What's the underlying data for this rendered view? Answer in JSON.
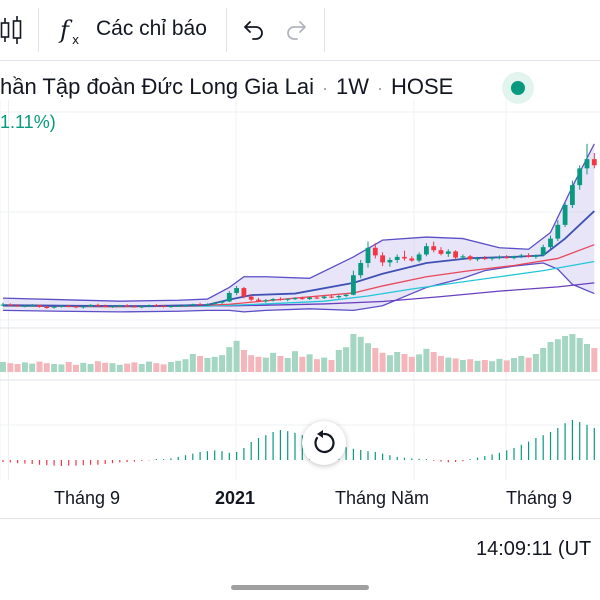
{
  "toolbar": {
    "indicators_label": "Các chỉ báo",
    "icons": [
      "candles-icon",
      "fx-icon",
      "undo-icon",
      "redo-icon"
    ]
  },
  "header": {
    "title": "hần Tập đoàn Đức Long Gia Lai",
    "interval": "1W",
    "exchange": "HOSE",
    "change": "1.11%)",
    "status_color": "#089981"
  },
  "time_display": "14:09:11 (UT",
  "colors": {
    "up": "#089981",
    "down": "#f23645",
    "bb_band": "#5b4fc7",
    "bb_fill": "#c9c6ee",
    "ma_fast": "#e8485a",
    "ma_mid": "#26c6da",
    "ma_slow": "#6a3fc0",
    "grid": "#eef0f3",
    "vol_up": "#a5d6c3",
    "vol_down": "#f4b6bb"
  },
  "chart_data": {
    "type": "candlestick",
    "x_tick_labels": [
      "Tháng 9",
      "2021",
      "Tháng Năm",
      "Tháng 9"
    ],
    "x_tick_bold": [
      false,
      true,
      false,
      false
    ],
    "price_scale": "unlabeled",
    "candles": [
      [
        0.0,
        2.32,
        2.4,
        2.28,
        2.34
      ],
      [
        1.0,
        2.34,
        2.38,
        2.3,
        2.31
      ],
      [
        2.0,
        2.31,
        2.35,
        2.26,
        2.28
      ],
      [
        3.0,
        2.28,
        2.33,
        2.25,
        2.3
      ],
      [
        4.0,
        2.3,
        2.36,
        2.27,
        2.32
      ],
      [
        5.0,
        2.32,
        2.34,
        2.24,
        2.26
      ],
      [
        6.0,
        2.26,
        2.3,
        2.2,
        2.24
      ],
      [
        7.0,
        2.24,
        2.29,
        2.21,
        2.27
      ],
      [
        8.0,
        2.27,
        2.32,
        2.24,
        2.3
      ],
      [
        9.0,
        2.3,
        2.33,
        2.25,
        2.28
      ],
      [
        10.0,
        2.28,
        2.31,
        2.22,
        2.25
      ],
      [
        11.0,
        2.25,
        2.3,
        2.21,
        2.28
      ],
      [
        12.0,
        2.28,
        2.35,
        2.26,
        2.33
      ],
      [
        13.0,
        2.33,
        2.37,
        2.28,
        2.3
      ],
      [
        14.0,
        2.3,
        2.34,
        2.25,
        2.27
      ],
      [
        15.0,
        2.27,
        2.31,
        2.23,
        2.29
      ],
      [
        16.0,
        2.29,
        2.33,
        2.26,
        2.31
      ],
      [
        17.0,
        2.31,
        2.35,
        2.27,
        2.28
      ],
      [
        18.0,
        2.28,
        2.32,
        2.24,
        2.26
      ],
      [
        19.0,
        2.26,
        2.3,
        2.22,
        2.28
      ],
      [
        20.0,
        2.28,
        2.34,
        2.25,
        2.32
      ],
      [
        21.0,
        2.32,
        2.36,
        2.28,
        2.3
      ],
      [
        22.0,
        2.3,
        2.33,
        2.24,
        2.27
      ],
      [
        23.0,
        2.27,
        2.31,
        2.23,
        2.29
      ],
      [
        24.0,
        2.29,
        2.33,
        2.26,
        2.3
      ],
      [
        25.0,
        2.3,
        2.34,
        2.27,
        2.32
      ],
      [
        26.0,
        2.32,
        2.37,
        2.29,
        2.35
      ],
      [
        27.0,
        2.35,
        2.4,
        2.31,
        2.33
      ],
      [
        28.0,
        2.33,
        2.38,
        2.3,
        2.36
      ],
      [
        29.0,
        2.36,
        2.43,
        2.33,
        2.4
      ],
      [
        30.0,
        2.4,
        2.47,
        2.36,
        2.44
      ],
      [
        31.0,
        2.44,
        2.78,
        2.42,
        2.72
      ],
      [
        32.0,
        2.72,
        2.95,
        2.65,
        2.88
      ],
      [
        33.0,
        2.88,
        2.92,
        2.55,
        2.6
      ],
      [
        34.0,
        2.6,
        2.68,
        2.45,
        2.5
      ],
      [
        35.0,
        2.5,
        2.56,
        2.42,
        2.46
      ],
      [
        36.0,
        2.46,
        2.52,
        2.4,
        2.48
      ],
      [
        37.0,
        2.48,
        2.55,
        2.44,
        2.52
      ],
      [
        38.0,
        2.52,
        2.58,
        2.47,
        2.5
      ],
      [
        39.0,
        2.5,
        2.54,
        2.45,
        2.53
      ],
      [
        40.0,
        2.53,
        2.58,
        2.49,
        2.55
      ],
      [
        41.0,
        2.55,
        2.6,
        2.5,
        2.52
      ],
      [
        42.0,
        2.52,
        2.59,
        2.49,
        2.57
      ],
      [
        43.0,
        2.57,
        2.63,
        2.52,
        2.55
      ],
      [
        44.0,
        2.55,
        2.62,
        2.52,
        2.6
      ],
      [
        45.0,
        2.6,
        2.66,
        2.55,
        2.58
      ],
      [
        46.0,
        2.58,
        2.65,
        2.54,
        2.62
      ],
      [
        47.0,
        2.62,
        2.7,
        2.58,
        2.66
      ],
      [
        48.0,
        2.66,
        3.45,
        2.64,
        3.3
      ],
      [
        49.0,
        3.3,
        3.8,
        3.2,
        3.7
      ],
      [
        50.0,
        3.7,
        4.4,
        3.55,
        4.2
      ],
      [
        51.0,
        4.2,
        4.35,
        3.85,
        3.95
      ],
      [
        52.0,
        3.95,
        4.05,
        3.6,
        3.72
      ],
      [
        53.0,
        3.72,
        3.88,
        3.58,
        3.8
      ],
      [
        54.0,
        3.8,
        3.98,
        3.7,
        3.9
      ],
      [
        55.0,
        3.9,
        4.1,
        3.78,
        3.85
      ],
      [
        56.0,
        3.85,
        3.92,
        3.74,
        3.78
      ],
      [
        57.0,
        3.78,
        4.05,
        3.72,
        3.98
      ],
      [
        58.0,
        3.98,
        4.35,
        3.92,
        4.25
      ],
      [
        59.0,
        4.25,
        4.4,
        4.05,
        4.12
      ],
      [
        60.0,
        4.12,
        4.22,
        3.95,
        4.0
      ],
      [
        61.0,
        4.0,
        4.15,
        3.9,
        4.08
      ],
      [
        62.0,
        4.08,
        4.12,
        3.82,
        3.88
      ],
      [
        63.0,
        3.88,
        3.98,
        3.8,
        3.92
      ],
      [
        64.0,
        3.92,
        3.96,
        3.78,
        3.82
      ],
      [
        65.0,
        3.82,
        3.9,
        3.76,
        3.86
      ],
      [
        66.0,
        3.86,
        3.93,
        3.8,
        3.84
      ],
      [
        67.0,
        3.84,
        3.9,
        3.78,
        3.88
      ],
      [
        68.0,
        3.88,
        3.95,
        3.82,
        3.9
      ],
      [
        69.0,
        3.9,
        3.96,
        3.84,
        3.86
      ],
      [
        70.0,
        3.86,
        3.94,
        3.82,
        3.92
      ],
      [
        71.0,
        3.92,
        4.0,
        3.86,
        3.95
      ],
      [
        72.0,
        3.95,
        4.02,
        3.88,
        3.9
      ],
      [
        73.0,
        3.9,
        3.98,
        3.84,
        3.96
      ],
      [
        74.0,
        3.96,
        4.3,
        3.92,
        4.22
      ],
      [
        75.0,
        4.22,
        4.6,
        4.15,
        4.5
      ],
      [
        76.0,
        4.5,
        5.1,
        4.42,
        4.95
      ],
      [
        77.0,
        4.95,
        5.7,
        4.88,
        5.6
      ],
      [
        78.0,
        5.6,
        6.4,
        5.5,
        6.25
      ],
      [
        79.0,
        6.25,
        6.9,
        6.1,
        6.8
      ],
      [
        80.0,
        6.8,
        7.6,
        6.6,
        7.1
      ],
      [
        81.0,
        7.1,
        7.3,
        6.8,
        6.9
      ]
    ],
    "bollinger": {
      "upper": [
        [
          0,
          2.55
        ],
        [
          8,
          2.5
        ],
        [
          16,
          2.45
        ],
        [
          24,
          2.48
        ],
        [
          28,
          2.52
        ],
        [
          31,
          2.9
        ],
        [
          33,
          3.25
        ],
        [
          36,
          3.25
        ],
        [
          42,
          3.2
        ],
        [
          48,
          3.9
        ],
        [
          52,
          4.45
        ],
        [
          58,
          4.55
        ],
        [
          63,
          4.5
        ],
        [
          68,
          4.2
        ],
        [
          72,
          4.15
        ],
        [
          75,
          4.7
        ],
        [
          78,
          6.2
        ],
        [
          81,
          7.6
        ]
      ],
      "lower": [
        [
          0,
          2.15
        ],
        [
          8,
          2.12
        ],
        [
          16,
          2.1
        ],
        [
          24,
          2.12
        ],
        [
          28,
          2.15
        ],
        [
          31,
          2.15
        ],
        [
          33,
          2.1
        ],
        [
          36,
          2.15
        ],
        [
          42,
          2.2
        ],
        [
          48,
          2.15
        ],
        [
          52,
          2.3
        ],
        [
          58,
          2.9
        ],
        [
          63,
          3.2
        ],
        [
          66,
          3.45
        ],
        [
          70,
          3.6
        ],
        [
          74,
          3.7
        ],
        [
          76,
          3.5
        ],
        [
          78,
          3.0
        ],
        [
          81,
          2.7
        ]
      ],
      "basis": [
        [
          0,
          2.32
        ],
        [
          10,
          2.3
        ],
        [
          20,
          2.29
        ],
        [
          28,
          2.33
        ],
        [
          31,
          2.5
        ],
        [
          34,
          2.65
        ],
        [
          40,
          2.7
        ],
        [
          48,
          3.05
        ],
        [
          52,
          3.35
        ],
        [
          58,
          3.7
        ],
        [
          64,
          3.86
        ],
        [
          70,
          3.9
        ],
        [
          74,
          3.95
        ],
        [
          77,
          4.5
        ],
        [
          81,
          5.4
        ]
      ]
    },
    "moving_averages": [
      {
        "points": [
          [
            0,
            2.3
          ],
          [
            15,
            2.27
          ],
          [
            25,
            2.29
          ],
          [
            31,
            2.35
          ],
          [
            40,
            2.55
          ],
          [
            48,
            2.72
          ],
          [
            52,
            2.95
          ],
          [
            58,
            3.25
          ],
          [
            64,
            3.45
          ],
          [
            70,
            3.62
          ],
          [
            76,
            3.85
          ],
          [
            81,
            4.3
          ]
        ]
      },
      {
        "points": [
          [
            0,
            2.29
          ],
          [
            15,
            2.27
          ],
          [
            28,
            2.29
          ],
          [
            36,
            2.36
          ],
          [
            44,
            2.45
          ],
          [
            50,
            2.62
          ],
          [
            56,
            2.85
          ],
          [
            62,
            3.05
          ],
          [
            68,
            3.25
          ],
          [
            74,
            3.45
          ],
          [
            81,
            3.75
          ]
        ]
      },
      {
        "points": [
          [
            0,
            2.32
          ],
          [
            20,
            2.28
          ],
          [
            32,
            2.3
          ],
          [
            44,
            2.36
          ],
          [
            52,
            2.44
          ],
          [
            60,
            2.6
          ],
          [
            68,
            2.78
          ],
          [
            76,
            2.92
          ],
          [
            81,
            3.05
          ]
        ]
      }
    ],
    "volume": [
      [
        0.0,
        0.25
      ],
      [
        1.0,
        0.22
      ],
      [
        2.0,
        0.2
      ],
      [
        3.0,
        0.24
      ],
      [
        4.0,
        0.21
      ],
      [
        5.0,
        0.26
      ],
      [
        6.0,
        0.22
      ],
      [
        7.0,
        0.2
      ],
      [
        8.0,
        0.19
      ],
      [
        9.0,
        0.25
      ],
      [
        10.0,
        0.18
      ],
      [
        11.0,
        0.23
      ],
      [
        12.0,
        0.2
      ],
      [
        13.0,
        0.27
      ],
      [
        14.0,
        0.23
      ],
      [
        15.0,
        0.22
      ],
      [
        16.0,
        0.18
      ],
      [
        17.0,
        0.21
      ],
      [
        18.0,
        0.24
      ],
      [
        19.0,
        0.2
      ],
      [
        20.0,
        0.26
      ],
      [
        21.0,
        0.22
      ],
      [
        22.0,
        0.19
      ],
      [
        23.0,
        0.25
      ],
      [
        24.0,
        0.28
      ],
      [
        25.0,
        0.32
      ],
      [
        26.0,
        0.45
      ],
      [
        27.0,
        0.4
      ],
      [
        28.0,
        0.35
      ],
      [
        29.0,
        0.38
      ],
      [
        30.0,
        0.42
      ],
      [
        31.0,
        0.62
      ],
      [
        32.0,
        0.78
      ],
      [
        33.0,
        0.55
      ],
      [
        34.0,
        0.42
      ],
      [
        35.0,
        0.38
      ],
      [
        36.0,
        0.36
      ],
      [
        37.0,
        0.48
      ],
      [
        38.0,
        0.4
      ],
      [
        39.0,
        0.35
      ],
      [
        40.0,
        0.52
      ],
      [
        41.0,
        0.38
      ],
      [
        42.0,
        0.44
      ],
      [
        43.0,
        0.32
      ],
      [
        44.0,
        0.36
      ],
      [
        45.0,
        0.3
      ],
      [
        46.0,
        0.55
      ],
      [
        47.0,
        0.62
      ],
      [
        48.0,
        0.95
      ],
      [
        49.0,
        0.88
      ],
      [
        50.0,
        0.72
      ],
      [
        51.0,
        0.6
      ],
      [
        52.0,
        0.48
      ],
      [
        53.0,
        0.42
      ],
      [
        54.0,
        0.5
      ],
      [
        55.0,
        0.45
      ],
      [
        56.0,
        0.38
      ],
      [
        57.0,
        0.44
      ],
      [
        58.0,
        0.58
      ],
      [
        59.0,
        0.5
      ],
      [
        60.0,
        0.4
      ],
      [
        61.0,
        0.36
      ],
      [
        62.0,
        0.34
      ],
      [
        63.0,
        0.3
      ],
      [
        64.0,
        0.32
      ],
      [
        65.0,
        0.28
      ],
      [
        66.0,
        0.3
      ],
      [
        67.0,
        0.27
      ],
      [
        68.0,
        0.33
      ],
      [
        69.0,
        0.29
      ],
      [
        70.0,
        0.35
      ],
      [
        71.0,
        0.4
      ],
      [
        72.0,
        0.36
      ],
      [
        73.0,
        0.45
      ],
      [
        74.0,
        0.6
      ],
      [
        75.0,
        0.75
      ],
      [
        76.0,
        0.82
      ],
      [
        77.0,
        0.9
      ],
      [
        78.0,
        0.95
      ],
      [
        79.0,
        0.85
      ],
      [
        80.0,
        0.7
      ],
      [
        81.0,
        0.6
      ]
    ],
    "oscillator": [
      [
        0.0,
        -0.05
      ],
      [
        1.0,
        -0.06
      ],
      [
        2.0,
        -0.08
      ],
      [
        3.0,
        -0.09
      ],
      [
        4.0,
        -0.1
      ],
      [
        5.0,
        -0.12
      ],
      [
        6.0,
        -0.13
      ],
      [
        7.0,
        -0.14
      ],
      [
        8.0,
        -0.15
      ],
      [
        9.0,
        -0.14
      ],
      [
        10.0,
        -0.14
      ],
      [
        11.0,
        -0.13
      ],
      [
        12.0,
        -0.12
      ],
      [
        13.0,
        -0.12
      ],
      [
        14.0,
        -0.1
      ],
      [
        15.0,
        -0.08
      ],
      [
        16.0,
        -0.06
      ],
      [
        17.0,
        -0.05
      ],
      [
        18.0,
        -0.04
      ],
      [
        19.0,
        -0.02
      ],
      [
        20.0,
        -0.01
      ],
      [
        21.0,
        0.0
      ],
      [
        22.0,
        0.02
      ],
      [
        23.0,
        0.04
      ],
      [
        24.0,
        0.08
      ],
      [
        25.0,
        0.12
      ],
      [
        26.0,
        0.16
      ],
      [
        27.0,
        0.2
      ],
      [
        28.0,
        0.22
      ],
      [
        29.0,
        0.24
      ],
      [
        30.0,
        0.22
      ],
      [
        31.0,
        0.18
      ],
      [
        32.0,
        0.2
      ],
      [
        33.0,
        0.3
      ],
      [
        34.0,
        0.45
      ],
      [
        35.0,
        0.55
      ],
      [
        36.0,
        0.62
      ],
      [
        37.0,
        0.7
      ],
      [
        38.0,
        0.75
      ],
      [
        39.0,
        0.72
      ],
      [
        40.0,
        0.68
      ],
      [
        41.0,
        0.62
      ],
      [
        42.0,
        0.55
      ],
      [
        43.0,
        0.5
      ],
      [
        44.0,
        0.45
      ],
      [
        45.0,
        0.4
      ],
      [
        46.0,
        0.36
      ],
      [
        47.0,
        0.32
      ],
      [
        48.0,
        0.28
      ],
      [
        49.0,
        0.25
      ],
      [
        50.0,
        0.22
      ],
      [
        51.0,
        0.2
      ],
      [
        52.0,
        0.16
      ],
      [
        53.0,
        0.12
      ],
      [
        54.0,
        0.08
      ],
      [
        55.0,
        0.06
      ],
      [
        56.0,
        0.04
      ],
      [
        57.0,
        0.03
      ],
      [
        58.0,
        0.02
      ],
      [
        59.0,
        -0.02
      ],
      [
        60.0,
        -0.04
      ],
      [
        61.0,
        -0.06
      ],
      [
        62.0,
        -0.05
      ],
      [
        63.0,
        -0.03
      ],
      [
        64.0,
        0.02
      ],
      [
        65.0,
        0.06
      ],
      [
        66.0,
        0.1
      ],
      [
        67.0,
        0.14
      ],
      [
        68.0,
        0.18
      ],
      [
        69.0,
        0.24
      ],
      [
        70.0,
        0.3
      ],
      [
        71.0,
        0.38
      ],
      [
        72.0,
        0.46
      ],
      [
        73.0,
        0.55
      ],
      [
        74.0,
        0.62
      ],
      [
        75.0,
        0.7
      ],
      [
        76.0,
        0.8
      ],
      [
        77.0,
        0.92
      ],
      [
        78.0,
        1.0
      ],
      [
        79.0,
        0.95
      ],
      [
        80.0,
        0.88
      ],
      [
        81.0,
        0.8
      ]
    ],
    "grid": true
  }
}
